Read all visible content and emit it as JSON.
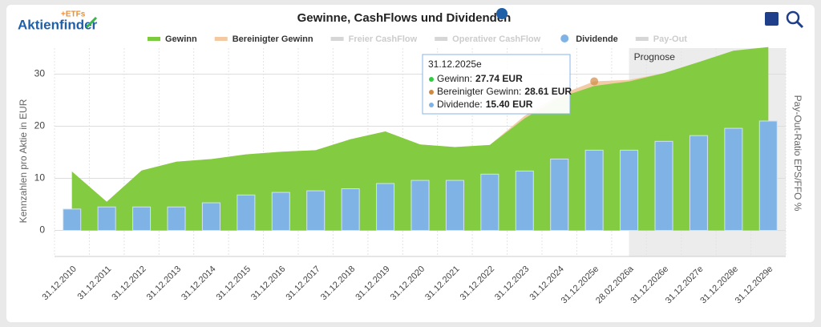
{
  "logo": {
    "text": "Aktienfinder",
    "badge": "+ETFs"
  },
  "chart_data": {
    "type": "combo",
    "title": "Gewinne, CashFlows und Dividenden",
    "y_label": "Kennzahlen pro Aktie in EUR",
    "y2_label": "Pay-Out-Ratio EPS/FFO %",
    "categories": [
      "31.12.2010",
      "31.12.2011",
      "31.12.2012",
      "31.12.2013",
      "31.12.2014",
      "31.12.2015",
      "31.12.2016",
      "31.12.2017",
      "31.12.2018",
      "31.12.2019",
      "31.12.2020",
      "31.12.2021",
      "31.12.2022",
      "31.12.2023",
      "31.12.2024",
      "31.12.2025e",
      "28.02.2026a",
      "31.12.2026e",
      "31.12.2027e",
      "31.12.2028e",
      "31.12.2029e"
    ],
    "series": [
      {
        "name": "Bereinigter Gewinn",
        "kind": "area",
        "color": "#f2c9a0",
        "values": [
          11.3,
          5.5,
          11.5,
          13.2,
          13.7,
          14.6,
          15.1,
          15.4,
          17.5,
          19.0,
          16.5,
          16.0,
          16.4,
          22.0,
          26.0,
          28.61,
          28.9,
          30.2,
          32.3,
          34.5,
          35.2
        ]
      },
      {
        "name": "Gewinn",
        "kind": "area",
        "color": "#7ccb3c",
        "values": [
          11.3,
          5.5,
          11.5,
          13.2,
          13.7,
          14.6,
          15.1,
          15.4,
          17.5,
          19.0,
          16.5,
          16.0,
          16.4,
          21.5,
          25.5,
          27.74,
          28.6,
          30.2,
          32.3,
          34.5,
          35.2
        ]
      },
      {
        "name": "Freier CashFlow",
        "kind": "hidden",
        "color": "#d6d6d6"
      },
      {
        "name": "Operativer CashFlow",
        "kind": "hidden",
        "color": "#d6d6d6"
      },
      {
        "name": "Dividende",
        "kind": "bar",
        "color": "#7fb3e6",
        "values": [
          4.1,
          4.5,
          4.5,
          4.5,
          5.3,
          6.8,
          7.3,
          7.6,
          8.0,
          9.0,
          9.6,
          9.6,
          10.8,
          11.4,
          13.7,
          15.4,
          15.4,
          17.1,
          18.2,
          19.6,
          21.0
        ]
      },
      {
        "name": "Pay-Out",
        "kind": "hidden",
        "color": "#d6d6d6"
      }
    ],
    "legend_order": [
      1,
      0,
      2,
      3,
      4,
      5
    ],
    "ylim": [
      -5,
      35
    ],
    "yticks": [
      0,
      10,
      20,
      30
    ],
    "grid": true,
    "forecast": {
      "label": "Prognose",
      "from": "28.02.2026a"
    },
    "tooltip": {
      "title": "31.12.2025e",
      "rows": [
        {
          "name": "Gewinn:",
          "label": "27.74 EUR",
          "color": "#2ecc40"
        },
        {
          "name": "Bereinigter Gewinn:",
          "label": "28.61 EUR",
          "color": "#d08a40"
        },
        {
          "name": "Dividende:",
          "label": "15.40 EUR",
          "color": "#7fb3e6"
        }
      ]
    }
  }
}
